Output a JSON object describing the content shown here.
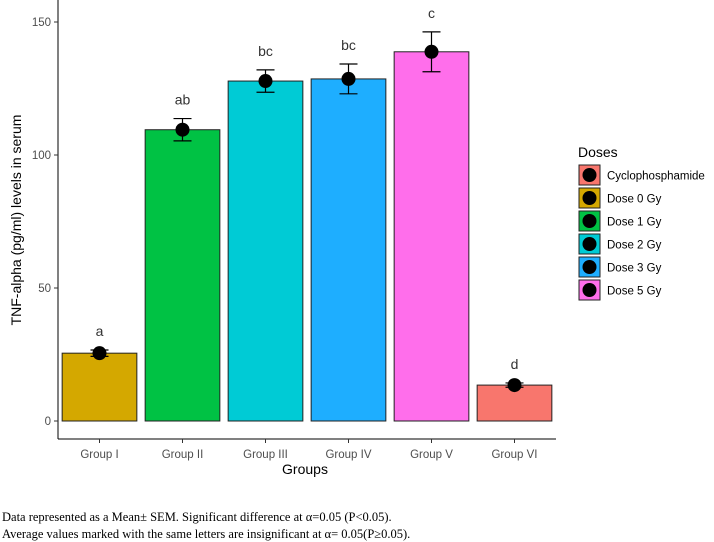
{
  "chart_data": {
    "type": "bar",
    "categories": [
      "Group I",
      "Group II",
      "Group III",
      "Group IV",
      "Group V",
      "Group VI"
    ],
    "values": [
      25.5,
      109.5,
      127.8,
      128.6,
      138.8,
      13.5
    ],
    "error": [
      1.2,
      4.2,
      4.2,
      5.6,
      7.5,
      0.8
    ],
    "significance_letters": [
      "a",
      "ab",
      "bc",
      "bc",
      "c",
      "d"
    ],
    "bar_series": [
      "Dose 0 Gy",
      "Dose 1 Gy",
      "Dose 2 Gy",
      "Dose 3 Gy",
      "Dose 5 Gy",
      "Cyclophosphamide"
    ],
    "xlabel": "Groups",
    "ylabel": "TNF-alpha (pg/ml) levels in serum",
    "ylim": [
      0,
      150
    ],
    "yticks": [
      0,
      50,
      100,
      150
    ],
    "grid": false,
    "legend": {
      "title": "Doses",
      "placement": "right",
      "items": [
        {
          "label": "Cyclophosphamide",
          "color": "#F8766D"
        },
        {
          "label": "Dose 0 Gy",
          "color": "#D4A800"
        },
        {
          "label": "Dose 1 Gy",
          "color": "#00C244"
        },
        {
          "label": "Dose 2 Gy",
          "color": "#00CBD5"
        },
        {
          "label": "Dose 3 Gy",
          "color": "#1EAEFF"
        },
        {
          "label": "Dose 5 Gy",
          "color": "#FF6EEB"
        }
      ]
    }
  },
  "caption": {
    "line1": "Data represented as a Mean± SEM. Significant difference at α=0.05 (P<0.05).",
    "line2": "Average values marked with the same letters are insignificant at α= 0.05(P≥0.05)."
  }
}
